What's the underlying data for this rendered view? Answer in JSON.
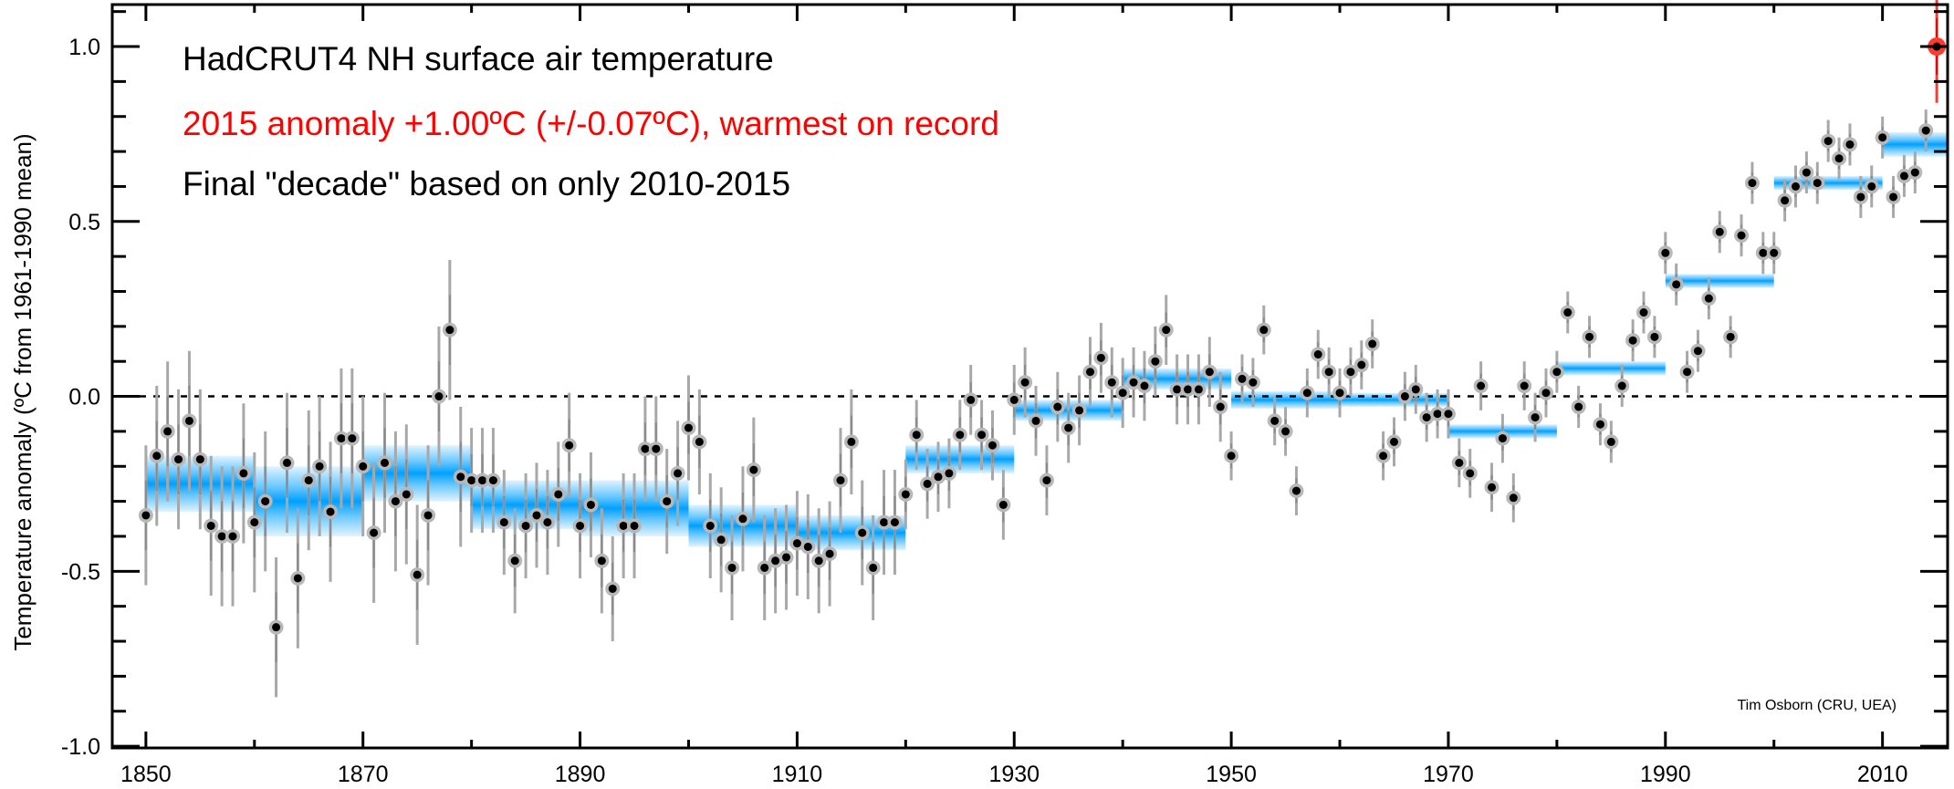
{
  "chart_data": {
    "type": "scatter",
    "title_lines": [
      {
        "text": "HadCRUT4 NH surface air temperature",
        "color": "#000000"
      },
      {
        "text": "2015 anomaly +1.00ºC (+/-0.07ºC), warmest on record",
        "color": "#ff0000"
      },
      {
        "text": "Final \"decade\" based on only 2010-2015",
        "color": "#000000"
      }
    ],
    "credit": "Tim Osborn (CRU, UEA)",
    "xlabel": "",
    "ylabel": "Temperature anomaly (ºC from 1961-1990 mean)",
    "xlim": [
      1846.9,
      2016
    ],
    "ylim": [
      -1.005,
      1.12
    ],
    "x_ticks": [
      1850,
      1870,
      1890,
      1910,
      1930,
      1950,
      1970,
      1990,
      2010
    ],
    "x_tick_labels": [
      "1850",
      "1870",
      "1890",
      "1910",
      "1930",
      "1950",
      "1970",
      "1990",
      "2010"
    ],
    "y_ticks": [
      -1.0,
      -0.5,
      0.0,
      0.5,
      1.0
    ],
    "y_tick_labels": [
      "-1.0",
      "-0.5",
      "0.0",
      "0.5",
      "1.0"
    ],
    "zero_line": "dashed",
    "colors": {
      "band": "#00a0ff",
      "point": "#000000",
      "halo": "#b8b8b8",
      "errorbar": "#a8a8a8",
      "highlight": "#ff3b30"
    },
    "annual": {
      "start_year": 1850,
      "values": [
        -0.34,
        -0.17,
        -0.1,
        -0.18,
        -0.07,
        -0.18,
        -0.37,
        -0.4,
        -0.4,
        -0.22,
        -0.36,
        -0.3,
        -0.66,
        -0.19,
        -0.52,
        -0.24,
        -0.2,
        -0.33,
        -0.12,
        -0.12,
        -0.2,
        -0.39,
        -0.19,
        -0.3,
        -0.28,
        -0.51,
        -0.34,
        0.0,
        0.19,
        -0.23,
        -0.24,
        -0.24,
        -0.24,
        -0.36,
        -0.47,
        -0.37,
        -0.34,
        -0.36,
        -0.28,
        -0.14,
        -0.37,
        -0.31,
        -0.47,
        -0.55,
        -0.37,
        -0.37,
        -0.15,
        -0.15,
        -0.3,
        -0.22,
        -0.09,
        -0.13,
        -0.37,
        -0.41,
        -0.49,
        -0.35,
        -0.21,
        -0.49,
        -0.47,
        -0.46,
        -0.42,
        -0.43,
        -0.47,
        -0.45,
        -0.24,
        -0.13,
        -0.39,
        -0.49,
        -0.36,
        -0.36,
        -0.28,
        -0.11,
        -0.25,
        -0.23,
        -0.22,
        -0.11,
        -0.01,
        -0.11,
        -0.14,
        -0.31,
        -0.01,
        0.04,
        -0.07,
        -0.24,
        -0.03,
        -0.09,
        -0.04,
        0.07,
        0.11,
        0.04,
        0.01,
        0.04,
        0.03,
        0.1,
        0.19,
        0.02,
        0.02,
        0.02,
        0.07,
        -0.03,
        -0.17,
        0.05,
        0.04,
        0.19,
        -0.07,
        -0.1,
        -0.27,
        0.01,
        0.12,
        0.07,
        0.01,
        0.07,
        0.09,
        0.15,
        -0.17,
        -0.13,
        0.0,
        0.02,
        -0.06,
        -0.05,
        -0.05,
        -0.19,
        -0.22,
        0.03,
        -0.26,
        -0.12,
        -0.29,
        0.03,
        -0.06,
        0.01,
        0.07,
        0.24,
        -0.03,
        0.17,
        -0.08,
        -0.13,
        0.03,
        0.16,
        0.24,
        0.17,
        0.41,
        0.32,
        0.07,
        0.13,
        0.28,
        0.47,
        0.17,
        0.46,
        0.61,
        0.41,
        0.41,
        0.56,
        0.6,
        0.64,
        0.61,
        0.73,
        0.68,
        0.72,
        0.57,
        0.6,
        0.74,
        0.57,
        0.63,
        0.64,
        0.76,
        1.0
      ],
      "uncertainty_by_period": [
        {
          "from": 1850,
          "to": 1879,
          "value": 0.2
        },
        {
          "from": 1880,
          "to": 1919,
          "value": 0.15
        },
        {
          "from": 1920,
          "to": 1949,
          "value": 0.1
        },
        {
          "from": 1950,
          "to": 1979,
          "value": 0.07
        },
        {
          "from": 1980,
          "to": 2015,
          "value": 0.06
        }
      ],
      "highlight_year": 2015,
      "highlight_uncertainty": 0.07
    },
    "decadal": [
      {
        "from": 1850,
        "to": 1860,
        "mean": -0.25,
        "uncertainty": 0.08
      },
      {
        "from": 1860,
        "to": 1870,
        "mean": -0.3,
        "uncertainty": 0.1
      },
      {
        "from": 1870,
        "to": 1880,
        "mean": -0.22,
        "uncertainty": 0.08
      },
      {
        "from": 1880,
        "to": 1890,
        "mean": -0.31,
        "uncertainty": 0.07
      },
      {
        "from": 1890,
        "to": 1900,
        "mean": -0.32,
        "uncertainty": 0.08
      },
      {
        "from": 1900,
        "to": 1910,
        "mean": -0.37,
        "uncertainty": 0.06
      },
      {
        "from": 1910,
        "to": 1920,
        "mean": -0.39,
        "uncertainty": 0.05
      },
      {
        "from": 1920,
        "to": 1930,
        "mean": -0.18,
        "uncertainty": 0.04
      },
      {
        "from": 1930,
        "to": 1940,
        "mean": -0.04,
        "uncertainty": 0.03
      },
      {
        "from": 1940,
        "to": 1950,
        "mean": 0.05,
        "uncertainty": 0.03
      },
      {
        "from": 1950,
        "to": 1960,
        "mean": -0.01,
        "uncertainty": 0.025
      },
      {
        "from": 1960,
        "to": 1970,
        "mean": -0.01,
        "uncertainty": 0.02
      },
      {
        "from": 1970,
        "to": 1980,
        "mean": -0.1,
        "uncertainty": 0.02
      },
      {
        "from": 1980,
        "to": 1990,
        "mean": 0.08,
        "uncertainty": 0.02
      },
      {
        "from": 1990,
        "to": 2000,
        "mean": 0.33,
        "uncertainty": 0.02
      },
      {
        "from": 2000,
        "to": 2010,
        "mean": 0.61,
        "uncertainty": 0.02
      },
      {
        "from": 2010,
        "to": 2016,
        "mean": 0.72,
        "uncertainty": 0.035
      }
    ]
  }
}
